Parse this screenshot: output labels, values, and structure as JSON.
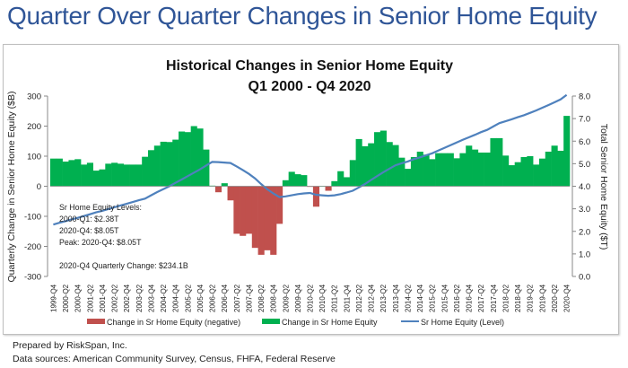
{
  "page_title": "Quarter Over Quarter Changes in Senior Home Equity",
  "footer": {
    "prepared": "Prepared by RiskSpan, Inc.",
    "sources": "Data sources: American Community Survey, Census, FHFA, Federal Reserve"
  },
  "chart_data": {
    "type": "bar+line",
    "title": "Historical Changes in Senior Home Equity",
    "subtitle": "Q1 2000 - Q4 2020",
    "ylabel": "Quarterly Change in Senior Home Equity ($B)",
    "y2label": "Total Senior Home Equity ($T)",
    "ylim": [
      -300,
      300
    ],
    "yticks": [
      "300",
      "200",
      "100",
      "0",
      "-100",
      "-200",
      "-300"
    ],
    "y2lim": [
      0,
      8
    ],
    "y2ticks": [
      "8.0",
      "7.0",
      "6.0",
      "5.0",
      "4.0",
      "3.0",
      "2.0",
      "1.0",
      "0.0"
    ],
    "first_quarter": "1999-Q4",
    "xtick_labels": [
      "1999-Q4",
      "2000-Q2",
      "2000-Q4",
      "2001-Q2",
      "2001-Q4",
      "2002-Q2",
      "2002-Q4",
      "2003-Q2",
      "2003-Q4",
      "2004-Q2",
      "2004-Q4",
      "2005-Q2",
      "2005-Q4",
      "2006-Q2",
      "2006-Q4",
      "2007-Q2",
      "2007-Q4",
      "2008-Q2",
      "2008-Q4",
      "2009-Q2",
      "2009-Q4",
      "2010-Q2",
      "2010-Q4",
      "2011-Q2",
      "2011-Q4",
      "2012-Q2",
      "2012-Q4",
      "2013-Q2",
      "2013-Q4",
      "2014-Q2",
      "2014-Q4",
      "2015-Q2",
      "2015-Q4",
      "2016-Q2",
      "2016-Q4",
      "2017-Q2",
      "2017-Q4",
      "2018-Q2",
      "2018-Q4",
      "2019-Q2",
      "2019-Q4",
      "2020-Q2",
      "2020-Q4"
    ],
    "change_values": [
      92,
      92,
      82,
      87,
      90,
      72,
      78,
      52,
      56,
      75,
      78,
      75,
      72,
      72,
      72,
      98,
      120,
      135,
      148,
      147,
      155,
      182,
      180,
      200,
      192,
      122,
      2,
      -20,
      10,
      -47,
      -158,
      -165,
      -158,
      -205,
      -228,
      -213,
      -228,
      -125,
      20,
      48,
      40,
      37,
      -2,
      -68,
      0,
      -15,
      17,
      50,
      30,
      87,
      157,
      133,
      143,
      180,
      185,
      147,
      137,
      95,
      58,
      97,
      115,
      105,
      90,
      110,
      110,
      110,
      93,
      110,
      135,
      122,
      112,
      112,
      160,
      160,
      102,
      70,
      80,
      97,
      100,
      72,
      92,
      115,
      135,
      118,
      234
    ],
    "level_values": [
      2.3,
      2.38,
      2.45,
      2.53,
      2.6,
      2.68,
      2.76,
      2.84,
      2.91,
      2.99,
      3.07,
      3.15,
      3.22,
      3.3,
      3.38,
      3.45,
      3.6,
      3.74,
      3.87,
      4.0,
      4.15,
      4.3,
      4.45,
      4.6,
      4.75,
      4.92,
      5.08,
      5.07,
      5.05,
      5.03,
      4.88,
      4.72,
      4.55,
      4.35,
      4.1,
      3.87,
      3.68,
      3.52,
      3.55,
      3.6,
      3.65,
      3.68,
      3.7,
      3.62,
      3.6,
      3.58,
      3.6,
      3.65,
      3.72,
      3.8,
      3.95,
      4.1,
      4.28,
      4.45,
      4.62,
      4.78,
      4.93,
      5.02,
      5.1,
      5.2,
      5.28,
      5.37,
      5.46,
      5.58,
      5.7,
      5.82,
      5.94,
      6.06,
      6.17,
      6.28,
      6.4,
      6.5,
      6.65,
      6.8,
      6.88,
      6.97,
      7.06,
      7.15,
      7.25,
      7.36,
      7.48,
      7.6,
      7.72,
      7.85,
      8.05
    ],
    "legend": [
      "Change in Sr Home Equity (negative)",
      "Change in Sr Home Equity",
      "Sr Home Equity (Level)"
    ],
    "legend_position": "bottom",
    "colors": {
      "negative": "#c0504d",
      "positive": "#00b050",
      "level": "#4f81bd"
    },
    "annotations": [
      "Sr Home Equity Levels:",
      "2000-Q1: $2.38T",
      "2020-Q4: $8.05T",
      "Peak: 2020-Q4: $8.05T",
      "",
      "2020-Q4 Quarterly Change: $234.1B"
    ],
    "grid": false
  }
}
